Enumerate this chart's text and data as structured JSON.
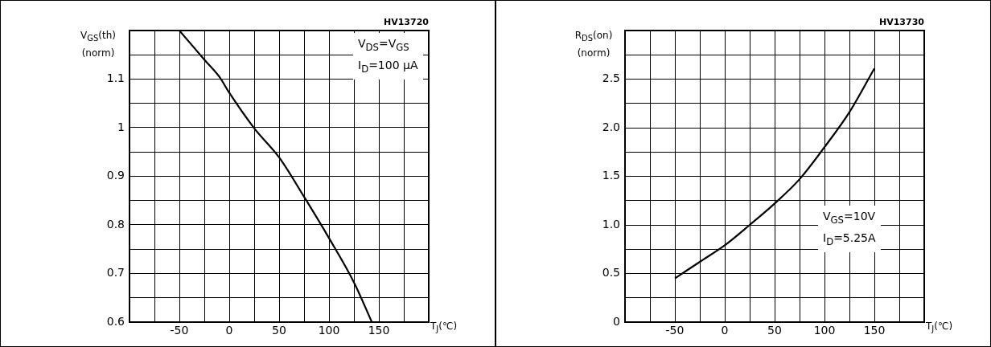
{
  "chart_data": [
    {
      "type": "line",
      "xlabel": "T$_{J}$(℃)",
      "ylabel": "V$_{GS}$(th)\n(norm)",
      "annotations": [
        "HV13720",
        "V$_{DS}$=V$_{GS}$",
        "I$_{D}$=100 μA"
      ],
      "x": [
        -50,
        -25,
        -10,
        0,
        25,
        50,
        75,
        100,
        125,
        143
      ],
      "series": [
        {
          "color": "#000000",
          "values": [
            1.2,
            1.14,
            1.105,
            1.072,
            0.999,
            0.939,
            0.858,
            0.773,
            0.682,
            0.6
          ]
        }
      ],
      "xlim": [
        -100,
        200
      ],
      "xticks": [
        {
          "value": -100,
          "label": null
        },
        {
          "value": -75,
          "label": null
        },
        -50,
        {
          "value": -25,
          "label": null
        },
        0,
        {
          "value": 25,
          "label": null
        },
        50,
        {
          "value": 75,
          "label": null
        },
        100,
        {
          "value": 125,
          "label": null
        },
        150,
        {
          "value": 175,
          "label": null
        },
        {
          "value": 200,
          "label": null
        }
      ],
      "ylim": [
        0.6,
        1.2
      ],
      "yticks": [
        0.6,
        {
          "value": 0.65,
          "label": null
        },
        0.7,
        {
          "value": 0.75,
          "label": null
        },
        0.8,
        {
          "value": 0.85,
          "label": null
        },
        0.9,
        {
          "value": 0.95,
          "label": null
        },
        1,
        {
          "value": 1.05,
          "label": null
        },
        1.1,
        {
          "value": 1.15,
          "label": null
        },
        {
          "value": 1.2,
          "label": null
        }
      ],
      "grid": true,
      "legend": false
    },
    {
      "type": "line",
      "xlabel": "T$_{J}$(℃)",
      "ylabel": "R$_{DS}$(on)\n(norm)",
      "annotations": [
        "HV13730",
        "V$_{GS}$=10V",
        "I$_{D}$=5.25A"
      ],
      "x": [
        -50,
        -25,
        0,
        25,
        50,
        75,
        100,
        125,
        150
      ],
      "series": [
        {
          "color": "#000000",
          "values": [
            0.45,
            0.62,
            0.79,
            1.0,
            1.22,
            1.47,
            1.8,
            2.16,
            2.61
          ]
        }
      ],
      "xlim": [
        -100,
        200
      ],
      "xticks": [
        {
          "value": -100,
          "label": null
        },
        {
          "value": -75,
          "label": null
        },
        -50,
        {
          "value": -25,
          "label": null
        },
        0,
        {
          "value": 25,
          "label": null
        },
        50,
        {
          "value": 75,
          "label": null
        },
        100,
        {
          "value": 125,
          "label": null
        },
        150,
        {
          "value": 175,
          "label": null
        },
        {
          "value": 200,
          "label": null
        }
      ],
      "ylim": [
        0,
        3
      ],
      "yticks": [
        0,
        {
          "value": 0.25,
          "label": null
        },
        0.5,
        {
          "value": 0.75,
          "label": null
        },
        {
          "value": 1,
          "label": "1.0"
        },
        {
          "value": 1.25,
          "label": null
        },
        1.5,
        {
          "value": 1.75,
          "label": null
        },
        {
          "value": 2,
          "label": "2.0"
        },
        {
          "value": 2.25,
          "label": null
        },
        2.5,
        {
          "value": 2.75,
          "label": null
        },
        {
          "value": 3,
          "label": null
        }
      ],
      "grid": true,
      "legend": false
    }
  ]
}
